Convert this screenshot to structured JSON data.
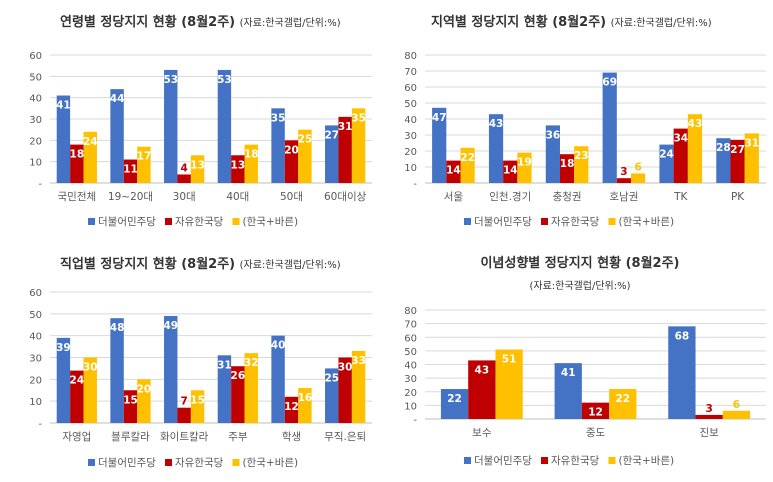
{
  "colors": {
    "blue": "#4472C4",
    "red": "#C00000",
    "yellow": "#FFC000",
    "grid": "#D9D9D9",
    "axis": "#BFBFBF",
    "text": "#595959"
  },
  "legend": [
    "더불어민주당",
    "자유한국당",
    "(한국+바른)"
  ],
  "chart_data": [
    {
      "type": "bar",
      "title": "연령별 정당지지 현황 (8월2주)",
      "subtitle": "(자료:한국갤럽/단위:%)",
      "categories": [
        "국민전체",
        "19~20대",
        "30대",
        "40대",
        "50대",
        "60대이상"
      ],
      "ylim": [
        0,
        60
      ],
      "yticks": [
        10,
        20,
        30,
        40,
        50,
        60
      ],
      "zero_label": "-",
      "grid": true,
      "legend_position": "bottom",
      "series": [
        {
          "name": "더불어민주당",
          "values": [
            41,
            44,
            53,
            53,
            35,
            27
          ]
        },
        {
          "name": "자유한국당",
          "values": [
            18,
            11,
            4,
            13,
            20,
            31
          ]
        },
        {
          "name": "(한국+바른)",
          "values": [
            24,
            17,
            13,
            18,
            25,
            35
          ]
        }
      ]
    },
    {
      "type": "bar",
      "title": "지역별 정당지지 현황 (8월2주)",
      "subtitle": "(자료:한국갤럽/단위:%)",
      "categories": [
        "서울",
        "인천.경기",
        "충청권",
        "호남권",
        "TK",
        "PK"
      ],
      "ylim": [
        0,
        80
      ],
      "yticks": [
        10,
        20,
        30,
        40,
        50,
        60,
        70,
        80
      ],
      "zero_label": "-",
      "grid": true,
      "legend_position": "bottom",
      "series": [
        {
          "name": "더불어민주당",
          "values": [
            47,
            43,
            36,
            69,
            24,
            28
          ]
        },
        {
          "name": "자유한국당",
          "values": [
            14,
            14,
            18,
            3,
            34,
            27
          ]
        },
        {
          "name": "(한국+바른)",
          "values": [
            22,
            19,
            23,
            6,
            43,
            31
          ]
        }
      ]
    },
    {
      "type": "bar",
      "title": "직업별 정당지지 현황 (8월2주)",
      "subtitle": "(자료:한국갤럽/단위:%)",
      "categories": [
        "자영업",
        "블루칼라",
        "화이트칼라",
        "주부",
        "학생",
        "무직.은퇴"
      ],
      "ylim": [
        0,
        60
      ],
      "yticks": [
        10,
        20,
        30,
        40,
        50,
        60
      ],
      "zero_label": "-",
      "grid": true,
      "legend_position": "bottom",
      "series": [
        {
          "name": "더불어민주당",
          "values": [
            39,
            48,
            49,
            31,
            40,
            25
          ]
        },
        {
          "name": "자유한국당",
          "values": [
            24,
            15,
            7,
            26,
            12,
            30
          ]
        },
        {
          "name": "(한국+바른)",
          "values": [
            30,
            20,
            15,
            32,
            16,
            33
          ]
        }
      ]
    },
    {
      "type": "bar",
      "title": "이념성향별 정당지지 현황 (8월2주)",
      "subtitle": "(자료:한국갤럽/단위:%)",
      "categories": [
        "보수",
        "중도",
        "진보"
      ],
      "ylim": [
        0,
        80
      ],
      "yticks": [
        10,
        20,
        30,
        40,
        50,
        60,
        70,
        80
      ],
      "zero_label": "-",
      "grid": true,
      "legend_position": "bottom",
      "series": [
        {
          "name": "더불어민주당",
          "values": [
            22,
            41,
            68
          ]
        },
        {
          "name": "자유한국당",
          "values": [
            43,
            12,
            3
          ]
        },
        {
          "name": "(한국+바른)",
          "values": [
            51,
            22,
            6
          ]
        }
      ]
    }
  ]
}
